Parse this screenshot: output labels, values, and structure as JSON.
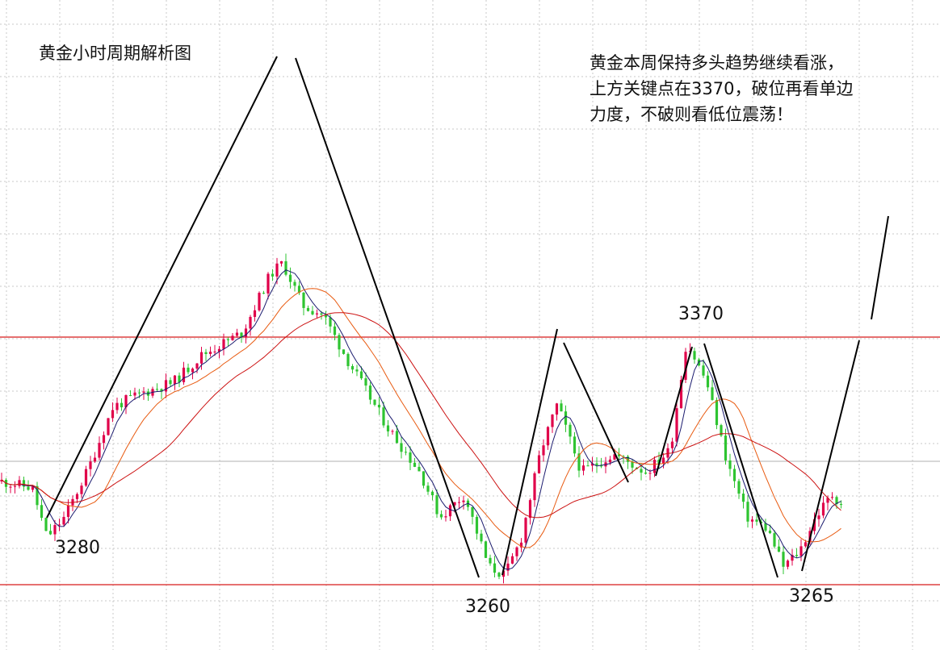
{
  "chart_data": {
    "type": "candlestick",
    "title": "黄金小时周期解析图",
    "annotation_lines": [
      "黄金本周保持多头趋势继续看涨，",
      "上方关键点在3370，破位再看单边",
      "力度，不破则看低位震荡！"
    ],
    "price_labels": [
      "3280",
      "3370",
      "3260",
      "3265"
    ],
    "key_levels": [
      3370,
      3260
    ],
    "wave_points": [
      {
        "label": "3280",
        "price": 3280,
        "kind": "low"
      },
      {
        "label": "3370",
        "price": 3370,
        "kind": "high"
      },
      {
        "label": "3260",
        "price": 3260,
        "kind": "low"
      },
      {
        "label": "3265",
        "price": 3265,
        "kind": "low"
      }
    ],
    "ylim": [
      3255,
      3400
    ],
    "grid": true,
    "colors": {
      "up": "#e0004a",
      "down": "#2ec431",
      "key_level": "#d81a1a",
      "ma_fast": "#1a1a6e",
      "ma_mid": "#e85a10",
      "ma_slow": "#cc1111",
      "trend_line": "#000000",
      "grid": "#c8c8c8"
    }
  }
}
